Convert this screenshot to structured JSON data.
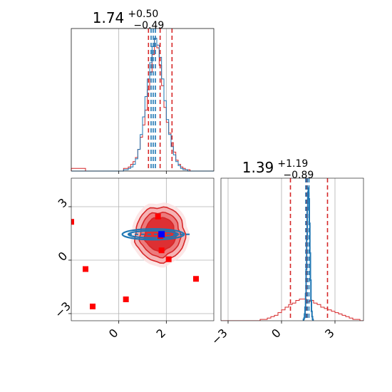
{
  "colors": {
    "red": "#d62728",
    "red_marker": "#ff0000",
    "blue": "#1f77b4",
    "blue_marker": "#0000ff",
    "grid": "#b0b0b0",
    "contour_fill": [
      "#f5b3b4",
      "#ec7a7c",
      "#dd3033"
    ]
  },
  "chart_data": [
    {
      "panel": "marginal-param-1",
      "type": "histogram",
      "title": {
        "value": "1.74",
        "plus": "+0.50",
        "minus": "−0.49"
      },
      "xlim": [
        -2,
        4.0
      ],
      "grid": true,
      "series": [
        {
          "name": "",
          "color": "#d62728",
          "bin_edges_start": -2.0,
          "bin_width": 0.1,
          "heights": [
            0.02,
            0.02,
            0.02,
            0.02,
            0.02,
            0.02,
            0.0,
            0.0,
            0.0,
            0.0,
            0.0,
            0.0,
            0.0,
            0.0,
            0.0,
            0.0,
            0.0,
            0.0,
            0.0,
            0.0,
            0.0,
            0.0,
            0.02,
            0.02,
            0.03,
            0.05,
            0.07,
            0.1,
            0.16,
            0.25,
            0.34,
            0.45,
            0.6,
            0.73,
            0.86,
            0.98,
            0.91,
            0.78,
            0.63,
            0.47,
            0.36,
            0.28,
            0.21,
            0.14,
            0.08,
            0.05,
            0.03,
            0.02,
            0.01,
            0.01,
            0.0,
            0.0,
            0.0,
            0.0,
            0.0,
            0.0,
            0.0,
            0.0,
            0.0,
            0.0
          ],
          "quantiles": [
            1.25,
            1.74,
            2.24
          ]
        },
        {
          "name": "",
          "color": "#1f77b4",
          "bin_edges_start": -2.0,
          "bin_width": 0.1,
          "heights": [
            0.0,
            0.0,
            0.0,
            0.0,
            0.0,
            0.0,
            0.0,
            0.0,
            0.0,
            0.0,
            0.0,
            0.0,
            0.0,
            0.0,
            0.0,
            0.0,
            0.0,
            0.0,
            0.0,
            0.0,
            0.0,
            0.0,
            0.01,
            0.01,
            0.02,
            0.03,
            0.05,
            0.09,
            0.16,
            0.27,
            0.4,
            0.55,
            0.68,
            0.8,
            0.92,
            0.98,
            0.93,
            0.84,
            0.68,
            0.52,
            0.38,
            0.27,
            0.18,
            0.12,
            0.07,
            0.04,
            0.02,
            0.01,
            0.01,
            0.0,
            0.0,
            0.0,
            0.0,
            0.0,
            0.0,
            0.0,
            0.0,
            0.0,
            0.0,
            0.0
          ],
          "quantiles": [
            1.36,
            1.45,
            1.54
          ]
        }
      ]
    },
    {
      "panel": "joint-param-1-param-2",
      "type": "scatter",
      "xlim": [
        -2,
        4.0
      ],
      "ylim": [
        -3.4,
        4.6
      ],
      "xticks": [
        0,
        2
      ],
      "yticks": [
        -3,
        0,
        3
      ],
      "ytick_labels": [
        "−3",
        "0",
        "3"
      ],
      "grid": true,
      "contours": {
        "center": [
          1.74,
          1.45
        ],
        "radii_x": [
          1.22,
          1.05,
          0.85,
          0.65
        ],
        "radii_y": [
          1.8,
          1.55,
          1.25,
          0.95
        ]
      },
      "blue_ellipse": {
        "center": [
          1.45,
          1.45
        ],
        "radii_x": [
          1.3,
          1.05
        ],
        "radii_y": [
          0.3,
          0.2
        ],
        "dashed_line_x": [
          0.4,
          3.0
        ],
        "dashed_line_y": 1.45
      },
      "red_markers": [
        {
          "x": -2.0,
          "y": 2.15
        },
        {
          "x": -1.4,
          "y": -0.5
        },
        {
          "x": -1.1,
          "y": -2.6
        },
        {
          "x": 0.3,
          "y": -2.2
        },
        {
          "x": 1.65,
          "y": 2.45
        },
        {
          "x": 1.75,
          "y": 1.35
        },
        {
          "x": 1.8,
          "y": 0.55
        },
        {
          "x": 2.1,
          "y": 0.05
        },
        {
          "x": 3.25,
          "y": -1.05
        }
      ],
      "blue_markers": [
        {
          "x": 1.8,
          "y": 1.45
        }
      ]
    },
    {
      "panel": "marginal-param-2",
      "type": "histogram",
      "title": {
        "value": "1.39",
        "plus": "+1.19",
        "minus": "−0.89"
      },
      "xlim": [
        -3.4,
        4.6
      ],
      "xticks": [
        -3,
        0,
        3
      ],
      "xtick_labels": [
        "−3",
        "0",
        "3"
      ],
      "grid": true,
      "series": [
        {
          "name": "",
          "color": "#d62728",
          "bin_edges_start": -3.4,
          "bin_width": 0.2,
          "heights": [
            0.0,
            0.0,
            0.0,
            0.0,
            0.0,
            0.0,
            0.0,
            0.0,
            0.0,
            0.0,
            0.0,
            0.01,
            0.01,
            0.02,
            0.03,
            0.04,
            0.06,
            0.08,
            0.1,
            0.12,
            0.13,
            0.15,
            0.16,
            0.16,
            0.14,
            0.15,
            0.13,
            0.12,
            0.1,
            0.09,
            0.08,
            0.07,
            0.06,
            0.05,
            0.04,
            0.03,
            0.02,
            0.01,
            0.01,
            0.0
          ],
          "quantiles": [
            0.5,
            1.39,
            2.58
          ]
        },
        {
          "name": "",
          "color": "#1f77b4",
          "bin_edges_start": 1.2,
          "bin_width": 0.03,
          "heights": [
            0.0,
            0.01,
            0.02,
            0.05,
            0.1,
            0.2,
            0.38,
            0.6,
            0.82,
            0.95,
            0.98,
            0.9,
            0.72,
            0.5,
            0.3,
            0.15,
            0.07,
            0.03,
            0.01,
            0.0
          ],
          "quantiles": [
            1.36,
            1.45,
            1.54
          ]
        }
      ]
    }
  ]
}
